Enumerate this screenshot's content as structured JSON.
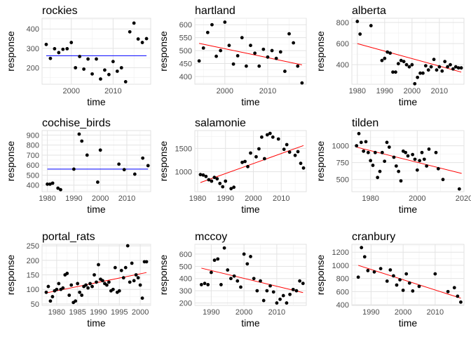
{
  "chart_data": [
    {
      "type": "scatter",
      "title": "rockies",
      "xlabel": "time",
      "ylabel": "response",
      "xlim": [
        1993,
        2019
      ],
      "ylim": [
        115,
        455
      ],
      "x_ticks": [
        2000,
        2010
      ],
      "y_ticks": [
        200,
        300,
        400
      ],
      "x": [
        1994,
        1995,
        1996,
        1997,
        1998,
        1999,
        2000,
        2001,
        2002,
        2003,
        2004,
        2005,
        2006,
        2007,
        2008,
        2009,
        2010,
        2011,
        2012,
        2013,
        2014,
        2015,
        2016,
        2017,
        2018
      ],
      "y": [
        320,
        248,
        298,
        278,
        295,
        298,
        330,
        200,
        258,
        193,
        245,
        168,
        245,
        142,
        188,
        165,
        232,
        182,
        200,
        128,
        385,
        430,
        348,
        330,
        350
      ],
      "fit": {
        "type": "horizontal",
        "color": "#0000ff",
        "x": [
          1994,
          2018
        ],
        "y": [
          262,
          262
        ]
      }
    },
    {
      "type": "scatter",
      "title": "hartland",
      "xlabel": "time",
      "ylabel": "response",
      "xlim": [
        1993,
        2019
      ],
      "ylim": [
        370,
        625
      ],
      "x_ticks": [
        2000,
        2010
      ],
      "y_ticks": [
        400,
        450,
        500,
        550,
        600
      ],
      "x": [
        1994,
        1995,
        1996,
        1997,
        1998,
        1999,
        2000,
        2001,
        2002,
        2003,
        2004,
        2005,
        2006,
        2007,
        2008,
        2009,
        2010,
        2011,
        2012,
        2013,
        2014,
        2015,
        2016,
        2017,
        2018
      ],
      "y": [
        460,
        510,
        570,
        600,
        478,
        500,
        610,
        520,
        448,
        480,
        550,
        440,
        520,
        490,
        440,
        505,
        475,
        500,
        470,
        495,
        420,
        565,
        530,
        440,
        375
      ],
      "fit": {
        "type": "trend",
        "color": "#ff0000",
        "x": [
          1994,
          2018
        ],
        "y": [
          528,
          445
        ]
      }
    },
    {
      "type": "scatter",
      "title": "alberta",
      "xlabel": "time",
      "ylabel": "response",
      "xlim": [
        1978,
        2019
      ],
      "ylim": [
        215,
        840
      ],
      "x_ticks": [
        1980,
        1990,
        2000,
        2010
      ],
      "y_ticks": [
        400,
        600,
        800
      ],
      "x": [
        1980,
        1981,
        1985,
        1989,
        1990,
        1991,
        1992,
        1993,
        1994,
        1995,
        1996,
        1997,
        1998,
        1999,
        2000,
        2001,
        2002,
        2003,
        2004,
        2005,
        2006,
        2007,
        2008,
        2009,
        2010,
        2011,
        2012,
        2013,
        2014,
        2015,
        2016,
        2017,
        2018
      ],
      "y": [
        810,
        690,
        770,
        440,
        460,
        520,
        510,
        330,
        330,
        410,
        440,
        430,
        400,
        380,
        400,
        220,
        280,
        320,
        320,
        390,
        350,
        380,
        450,
        350,
        380,
        340,
        430,
        380,
        400,
        360,
        380,
        370,
        370
      ],
      "fit": {
        "type": "trend",
        "color": "#ff0000",
        "x": [
          1980,
          2018
        ],
        "y": [
          600,
          330
        ]
      }
    },
    {
      "type": "scatter",
      "title": "cochise_birds",
      "xlabel": "time",
      "ylabel": "response",
      "xlim": [
        1978,
        2019
      ],
      "ylim": [
        335,
        945
      ],
      "x_ticks": [
        1980,
        1990,
        2000,
        2010
      ],
      "y_ticks": [
        400,
        500,
        600,
        700,
        800,
        900
      ],
      "x": [
        1980,
        1981,
        1982,
        1984,
        1985,
        1990,
        1992,
        1993,
        1995,
        1999,
        2000,
        2007,
        2009,
        2013,
        2016,
        2018
      ],
      "y": [
        410,
        410,
        420,
        370,
        355,
        560,
        910,
        840,
        700,
        430,
        750,
        610,
        555,
        510,
        670,
        595
      ],
      "fit": {
        "type": "horizontal",
        "color": "#0000ff",
        "x": [
          1980,
          2018
        ],
        "y": [
          560,
          560
        ]
      }
    },
    {
      "type": "scatter",
      "title": "salamonie",
      "xlabel": "time",
      "ylabel": "response",
      "xlim": [
        1979,
        2019
      ],
      "ylim": [
        575,
        1880
      ],
      "x_ticks": [
        1980,
        1990,
        2000,
        2010
      ],
      "y_ticks": [
        1000,
        1500
      ],
      "x": [
        1981,
        1982,
        1983,
        1984,
        1985,
        1986,
        1987,
        1988,
        1989,
        1990,
        1992,
        1993,
        1996,
        1997,
        1998,
        1999,
        2001,
        2002,
        2003,
        2004,
        2005,
        2006,
        2007,
        2009,
        2011,
        2012,
        2013,
        2015,
        2016,
        2017,
        2018
      ],
      "y": [
        940,
        930,
        900,
        830,
        800,
        880,
        850,
        750,
        680,
        800,
        640,
        670,
        1200,
        1220,
        1110,
        1400,
        1320,
        1490,
        1740,
        1280,
        1790,
        1820,
        1740,
        1700,
        1480,
        1580,
        1420,
        1350,
        1430,
        1180,
        1080
      ],
      "fit": {
        "type": "trend",
        "color": "#ff0000",
        "x": [
          1981,
          2018
        ],
        "y": [
          770,
          1560
        ]
      }
    },
    {
      "type": "scatter",
      "title": "tilden",
      "xlabel": "time",
      "ylabel": "response",
      "xlim": [
        1972,
        2020
      ],
      "ylim": [
        320,
        1225
      ],
      "x_ticks": [
        1980,
        2000,
        2020
      ],
      "x_tick_labels": [
        "1980",
        "2000",
        "2020"
      ],
      "x_minor_labels": [
        1990,
        2010
      ],
      "y_ticks": [
        500,
        750,
        1000
      ],
      "x": [
        1974,
        1975,
        1976,
        1977,
        1978,
        1979,
        1980,
        1981,
        1982,
        1983,
        1984,
        1985,
        1986,
        1987,
        1988,
        1990,
        1991,
        1992,
        1993,
        1994,
        1995,
        1996,
        1998,
        1999,
        2000,
        2001,
        2002,
        2003,
        2004,
        2005,
        2008,
        2009,
        2011,
        2018
      ],
      "y": [
        1000,
        1180,
        1050,
        920,
        1060,
        900,
        780,
        710,
        900,
        530,
        620,
        900,
        770,
        1050,
        980,
        830,
        700,
        620,
        480,
        920,
        900,
        850,
        870,
        800,
        640,
        780,
        900,
        800,
        700,
        950,
        900,
        660,
        500,
        360
      ],
      "fit": {
        "type": "trend",
        "color": "#ff0000",
        "x": [
          1974,
          2019
        ],
        "y": [
          980,
          590
        ]
      }
    },
    {
      "type": "scatter",
      "title": "portal_rats",
      "xlabel": "time",
      "ylabel": "response",
      "xlim": [
        1976.5,
        2002.5
      ],
      "ylim": [
        45,
        255
      ],
      "x_ticks": [
        1980,
        1985,
        1990,
        1995,
        2000
      ],
      "y_ticks": [
        50,
        100,
        150,
        200,
        250
      ],
      "x": [
        1977.5,
        1978,
        1978.5,
        1979,
        1979.5,
        1980,
        1980.5,
        1981,
        1981.5,
        1982,
        1982.5,
        1983,
        1983.5,
        1984,
        1984.5,
        1985,
        1985.5,
        1986,
        1986.5,
        1987,
        1987.5,
        1988,
        1988.5,
        1989,
        1989.5,
        1990,
        1990.5,
        1991,
        1991.5,
        1992,
        1992.5,
        1993,
        1993.5,
        1994,
        1994.5,
        1995,
        1995.5,
        1996,
        1996.5,
        1997,
        1997.5,
        1998,
        1998.5,
        1999,
        1999.5,
        2000,
        2000.5,
        2001,
        2001.5
      ],
      "y": [
        90,
        110,
        60,
        75,
        95,
        100,
        120,
        100,
        105,
        150,
        155,
        80,
        115,
        55,
        60,
        120,
        90,
        80,
        110,
        115,
        105,
        120,
        110,
        150,
        125,
        185,
        135,
        130,
        120,
        115,
        125,
        95,
        100,
        175,
        90,
        95,
        165,
        140,
        175,
        250,
        125,
        190,
        130,
        150,
        140,
        115,
        70,
        195,
        195
      ],
      "fit": {
        "type": "trend",
        "color": "#ff0000",
        "x": [
          1977.5,
          2001.5
        ],
        "y": [
          88,
          158
        ]
      }
    },
    {
      "type": "scatter",
      "title": "mccoy",
      "xlabel": "time",
      "ylabel": "response",
      "xlim": [
        1985,
        2019
      ],
      "ylim": [
        180,
        680
      ],
      "x_ticks": [
        1990,
        2000,
        2010
      ],
      "y_ticks": [
        200,
        300,
        400,
        500,
        600
      ],
      "x": [
        1987,
        1988,
        1989,
        1990,
        1991,
        1992,
        1993,
        1994,
        1995,
        1996,
        1997,
        1998,
        1999,
        2000,
        2001,
        2002,
        2003,
        2004,
        2005,
        2006,
        2007,
        2008,
        2009,
        2010,
        2011,
        2012,
        2013,
        2014,
        2015,
        2016,
        2017,
        2018
      ],
      "y": [
        350,
        360,
        350,
        450,
        550,
        560,
        350,
        650,
        470,
        400,
        420,
        380,
        330,
        600,
        520,
        580,
        400,
        300,
        380,
        220,
        300,
        340,
        290,
        200,
        230,
        260,
        200,
        270,
        310,
        300,
        380,
        360
      ],
      "fit": {
        "type": "trend",
        "color": "#ff0000",
        "x": [
          1987,
          2018
        ],
        "y": [
          485,
          285
        ]
      }
    },
    {
      "type": "scatter",
      "title": "cranbury",
      "xlabel": "time",
      "ylabel": "response",
      "xlim": [
        1984,
        2019
      ],
      "ylim": [
        390,
        1320
      ],
      "x_ticks": [
        1990,
        2000,
        2010
      ],
      "y_ticks": [
        400,
        600,
        800,
        1000,
        1200
      ],
      "x": [
        1986,
        1987,
        1988,
        1989,
        1991,
        1993,
        1995,
        1996,
        1997,
        1998,
        1999,
        2000,
        2001,
        2002,
        2003,
        2005,
        2010,
        2014,
        2016,
        2017,
        2018
      ],
      "y": [
        820,
        1270,
        1130,
        920,
        900,
        950,
        760,
        930,
        840,
        700,
        780,
        620,
        870,
        730,
        610,
        680,
        870,
        600,
        660,
        530,
        440
      ],
      "fit": {
        "type": "trend",
        "color": "#ff0000",
        "x": [
          1986,
          2018
        ],
        "y": [
          1000,
          500
        ]
      }
    }
  ]
}
